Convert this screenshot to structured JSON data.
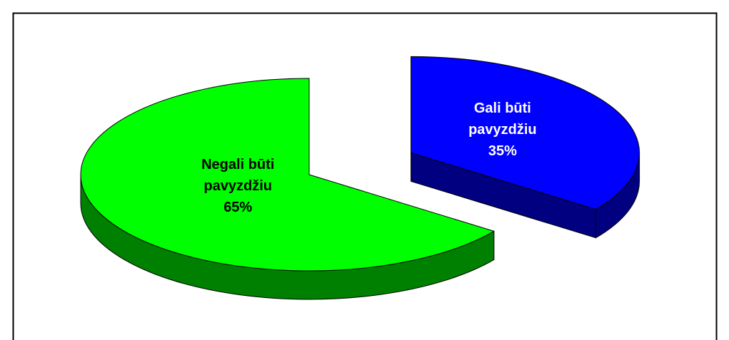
{
  "chart_data": {
    "type": "pie",
    "categories": [
      "Gali būti pavyzdžiu",
      "Negali būti pavyzdžiu"
    ],
    "values": [
      35,
      65
    ],
    "value_labels": [
      "35%",
      "65%"
    ],
    "colors": [
      "#0000ff",
      "#00ff00"
    ],
    "side_colors": [
      "#000080",
      "#008000"
    ]
  }
}
